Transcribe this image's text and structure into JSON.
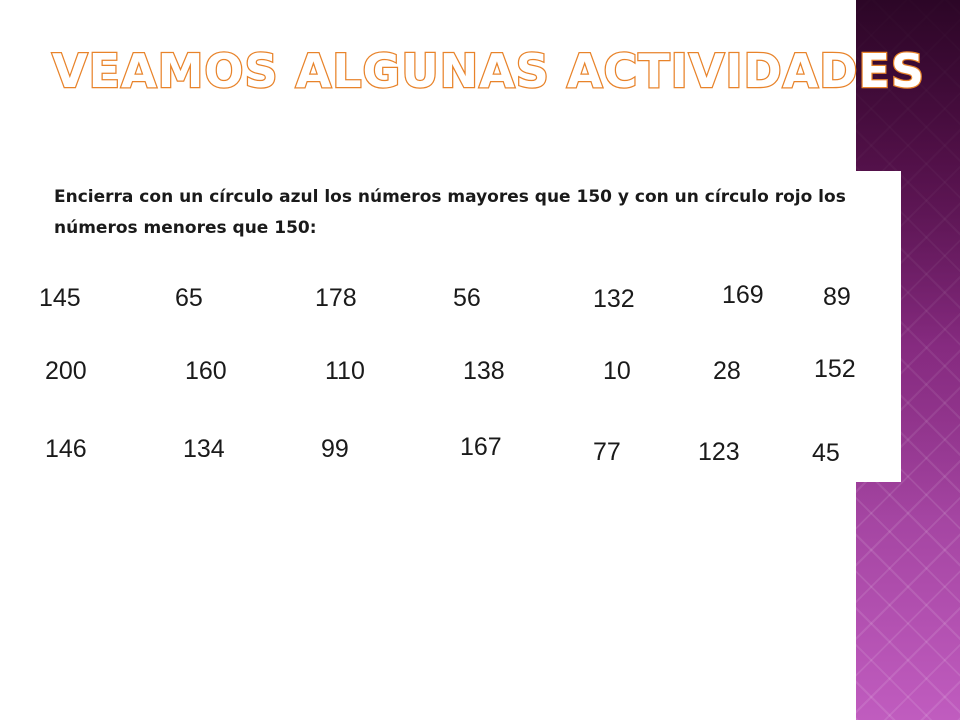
{
  "slide": {
    "title": "Veamos algunas actividades"
  },
  "activity": {
    "instruction": "Encierra con un círculo azul los números mayores que 150 y con un círculo rojo los números menores que 150:",
    "rows": [
      [
        "145",
        "65",
        "178",
        "56",
        "132",
        "169",
        "89"
      ],
      [
        "200",
        "160",
        "110",
        "138",
        "10",
        "28",
        "152"
      ],
      [
        "146",
        "134",
        "99",
        "167",
        "77",
        "123",
        "45"
      ]
    ]
  },
  "colors": {
    "title_outline": "#e8832a",
    "sidebar_purple": "#9c3b98",
    "text": "#1a1a1a"
  }
}
